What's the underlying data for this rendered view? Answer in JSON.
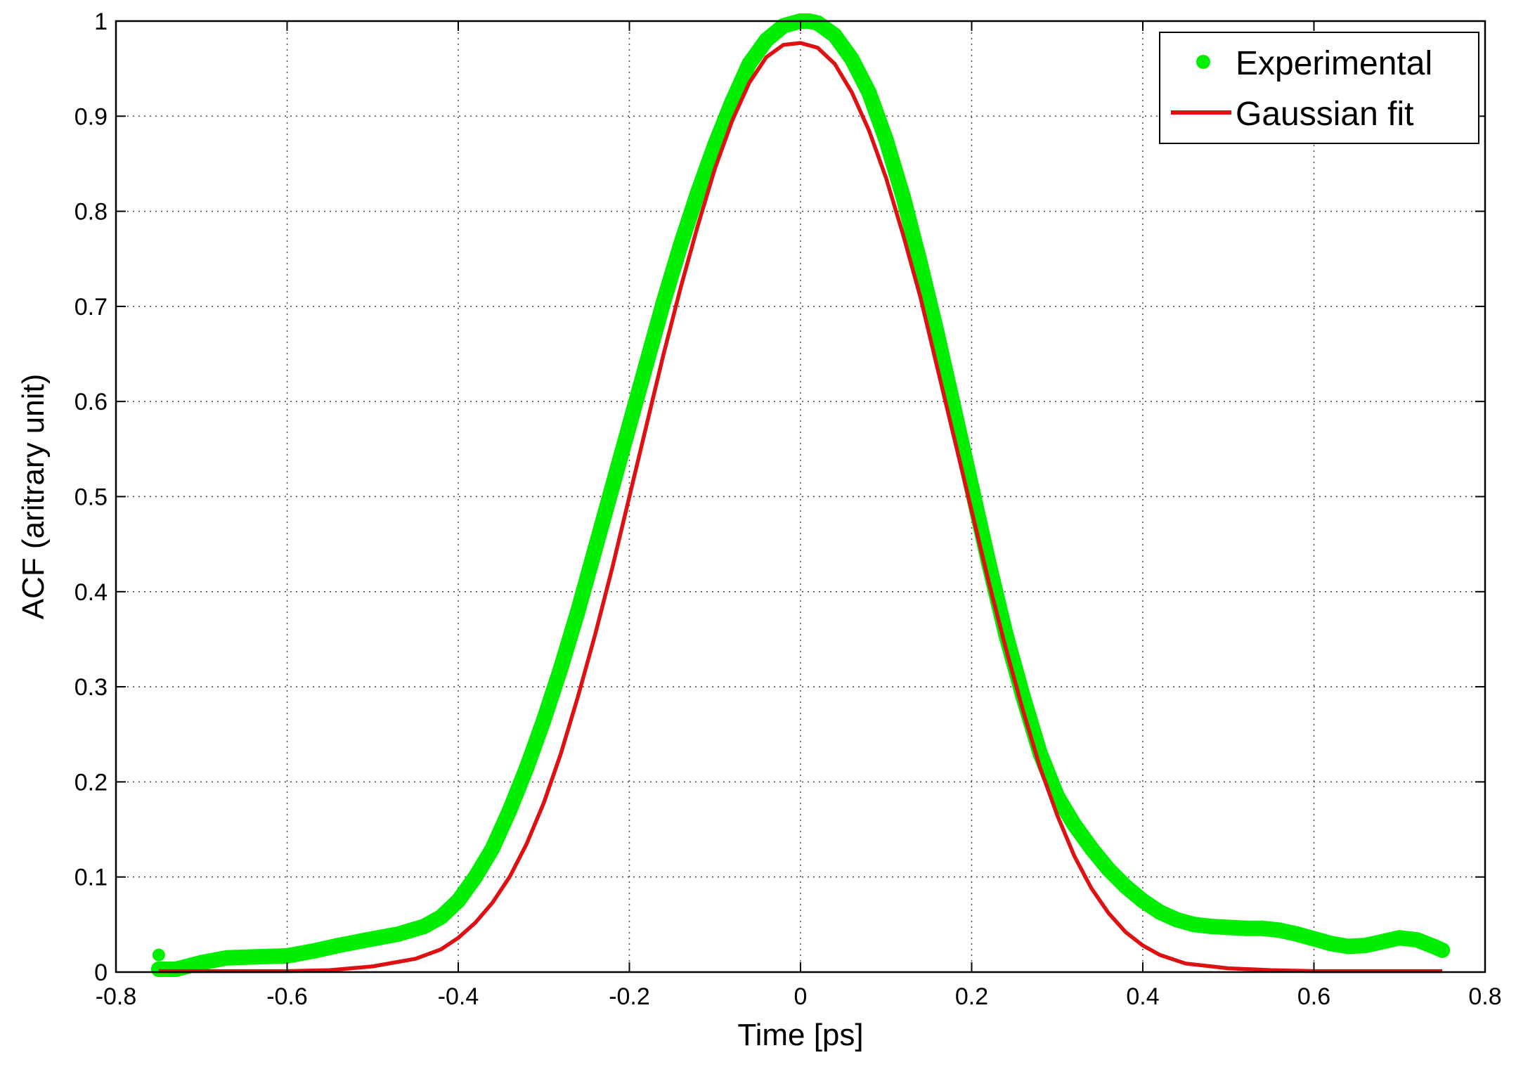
{
  "chart_data": {
    "type": "line",
    "title": "",
    "xlabel": "Time [ps]",
    "ylabel": "ACF (aritrary unit)",
    "xlim": [
      -0.8,
      0.8
    ],
    "ylim": [
      0,
      1
    ],
    "xticks": [
      -0.8,
      -0.6,
      -0.4,
      -0.2,
      0,
      0.2,
      0.4,
      0.6,
      0.8
    ],
    "yticks": [
      0,
      0.1,
      0.2,
      0.3,
      0.4,
      0.5,
      0.6,
      0.7,
      0.8,
      0.9,
      1
    ],
    "xtick_labels": [
      "-0.8",
      "-0.6",
      "-0.4",
      "-0.2",
      "0",
      "0.2",
      "0.4",
      "0.6",
      "0.8"
    ],
    "ytick_labels": [
      "0",
      "0.1",
      "0.2",
      "0.3",
      "0.4",
      "0.5",
      "0.6",
      "0.7",
      "0.8",
      "0.9",
      "1"
    ],
    "grid": true,
    "legend": {
      "position": "top-right"
    },
    "series": [
      {
        "name": "Experimental",
        "style": "markers",
        "color": "#00ee00",
        "x": [
          -0.75,
          -0.73,
          -0.7,
          -0.67,
          -0.64,
          -0.6,
          -0.57,
          -0.54,
          -0.5,
          -0.47,
          -0.44,
          -0.42,
          -0.4,
          -0.38,
          -0.36,
          -0.34,
          -0.32,
          -0.3,
          -0.28,
          -0.26,
          -0.24,
          -0.22,
          -0.2,
          -0.18,
          -0.16,
          -0.14,
          -0.12,
          -0.1,
          -0.08,
          -0.06,
          -0.04,
          -0.02,
          0.0,
          0.01,
          0.02,
          0.04,
          0.06,
          0.08,
          0.1,
          0.12,
          0.14,
          0.16,
          0.18,
          0.2,
          0.22,
          0.24,
          0.26,
          0.28,
          0.3,
          0.32,
          0.34,
          0.36,
          0.38,
          0.4,
          0.42,
          0.44,
          0.46,
          0.48,
          0.5,
          0.52,
          0.54,
          0.56,
          0.58,
          0.6,
          0.62,
          0.64,
          0.66,
          0.68,
          0.7,
          0.72,
          0.74,
          0.75
        ],
        "y": [
          0.003,
          0.003,
          0.01,
          0.015,
          0.016,
          0.017,
          0.022,
          0.028,
          0.035,
          0.04,
          0.048,
          0.058,
          0.075,
          0.1,
          0.13,
          0.17,
          0.215,
          0.265,
          0.32,
          0.38,
          0.445,
          0.51,
          0.575,
          0.64,
          0.705,
          0.765,
          0.82,
          0.87,
          0.915,
          0.955,
          0.98,
          0.995,
          1.0,
          1.0,
          0.998,
          0.985,
          0.96,
          0.925,
          0.875,
          0.815,
          0.745,
          0.67,
          0.59,
          0.51,
          0.43,
          0.355,
          0.29,
          0.23,
          0.185,
          0.155,
          0.13,
          0.108,
          0.09,
          0.075,
          0.063,
          0.055,
          0.05,
          0.048,
          0.047,
          0.046,
          0.046,
          0.044,
          0.04,
          0.035,
          0.03,
          0.027,
          0.028,
          0.032,
          0.036,
          0.034,
          0.027,
          0.023
        ],
        "outlier": {
          "x": -0.75,
          "y": 0.018
        }
      },
      {
        "name": "Gaussian fit",
        "style": "line",
        "color": "#dd1111",
        "x": [
          -0.75,
          -0.7,
          -0.65,
          -0.6,
          -0.55,
          -0.5,
          -0.45,
          -0.42,
          -0.4,
          -0.38,
          -0.36,
          -0.34,
          -0.32,
          -0.3,
          -0.28,
          -0.26,
          -0.24,
          -0.22,
          -0.2,
          -0.18,
          -0.16,
          -0.14,
          -0.12,
          -0.1,
          -0.08,
          -0.06,
          -0.04,
          -0.02,
          0.0,
          0.02,
          0.04,
          0.06,
          0.08,
          0.1,
          0.12,
          0.14,
          0.16,
          0.18,
          0.2,
          0.22,
          0.24,
          0.26,
          0.28,
          0.3,
          0.32,
          0.34,
          0.36,
          0.38,
          0.4,
          0.42,
          0.45,
          0.5,
          0.55,
          0.6,
          0.65,
          0.7,
          0.75
        ],
        "y": [
          0.001,
          0.001,
          0.001,
          0.001,
          0.002,
          0.006,
          0.014,
          0.024,
          0.036,
          0.052,
          0.073,
          0.1,
          0.135,
          0.178,
          0.23,
          0.29,
          0.355,
          0.425,
          0.5,
          0.575,
          0.65,
          0.72,
          0.785,
          0.845,
          0.895,
          0.935,
          0.962,
          0.975,
          0.977,
          0.972,
          0.955,
          0.925,
          0.885,
          0.835,
          0.775,
          0.71,
          0.635,
          0.56,
          0.485,
          0.41,
          0.34,
          0.275,
          0.215,
          0.165,
          0.122,
          0.088,
          0.062,
          0.042,
          0.028,
          0.018,
          0.009,
          0.004,
          0.002,
          0.001,
          0.001,
          0.001,
          0.001
        ]
      }
    ]
  }
}
